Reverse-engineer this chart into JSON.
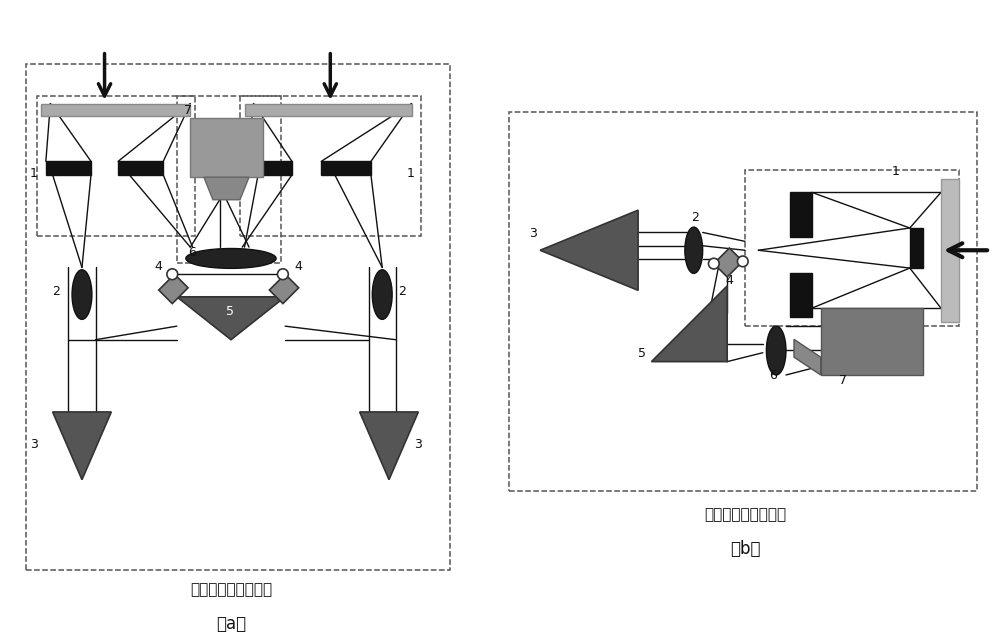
{
  "bg_color": "#ffffff",
  "left_label": "水平双筒结构俧视图",
  "right_label": "顶端单筒结构俧视图",
  "label_a": "（a）",
  "label_b": "（b）"
}
